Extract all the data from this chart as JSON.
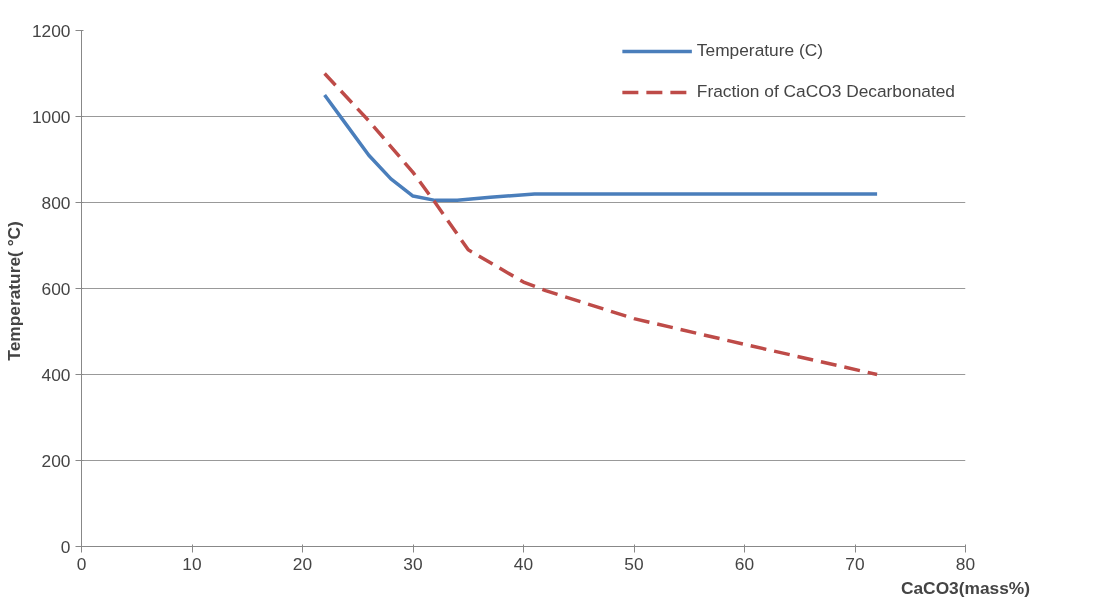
{
  "chart_data": {
    "type": "line",
    "xlabel": "CaCO3(mass%)",
    "ylabel": "Temperature(  °C)",
    "xlim": [
      0,
      80
    ],
    "ylim": [
      0,
      1200
    ],
    "xticks": [
      0,
      10,
      20,
      30,
      40,
      50,
      60,
      70,
      80
    ],
    "yticks": [
      0,
      200,
      400,
      600,
      800,
      1000,
      1200
    ],
    "grid": "y",
    "legend": "top right",
    "marker": "none",
    "series": [
      {
        "name": "Temperature (C)",
        "color": "#4a7ebb",
        "line_style": "solid",
        "x": [
          22,
          24,
          26,
          28,
          30,
          32,
          34,
          37,
          41,
          50,
          60,
          72
        ],
        "values": [
          1050,
          980,
          910,
          855,
          815,
          805,
          805,
          812,
          820,
          820,
          820,
          820
        ]
      },
      {
        "name": "Fraction of CaCO3 Decarbonated",
        "color": "#be4b48",
        "line_style": "dashed",
        "x": [
          22,
          26,
          30,
          32,
          35,
          40,
          42,
          50,
          60,
          72
        ],
        "values": [
          1100,
          990,
          870,
          800,
          690,
          615,
          595,
          530,
          470,
          400
        ]
      }
    ]
  }
}
